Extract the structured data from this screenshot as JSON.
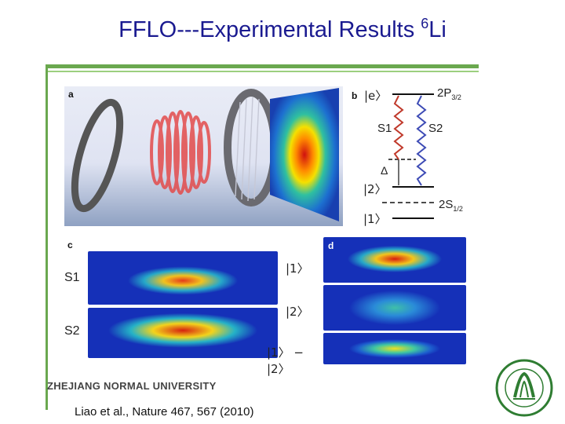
{
  "slide": {
    "title_main": "FFLO---Experimental Results ",
    "title_sup": "6",
    "title_tail": "Li",
    "university": "ZHEJIANG NORMAL UNIVERSITY",
    "citation": "Liao et al., Nature 467, 567 (2010)"
  },
  "panels": {
    "a": "a",
    "b": "b",
    "c": "c",
    "d": "d"
  },
  "diagram": {
    "state_e": "|e〉",
    "level_top": "2P",
    "level_top_sub": "3/2",
    "s1": "S1",
    "s2": "S2",
    "delta": "Δ",
    "state_2": "|2〉",
    "state_1": "|1〉",
    "level_bottom": "2S",
    "level_bottom_sub": "1/2"
  },
  "rows": {
    "s1": "S1",
    "s2": "S2",
    "k1": "|1〉",
    "k2": "|2〉",
    "kdiff": "|1〉 − |2〉"
  },
  "colors": {
    "title": "#1a1a90",
    "rule": "#6aa84f",
    "heat_bg": "#1530b8",
    "wave_red": "#c0392b",
    "wave_blue": "#3d4bb5"
  }
}
